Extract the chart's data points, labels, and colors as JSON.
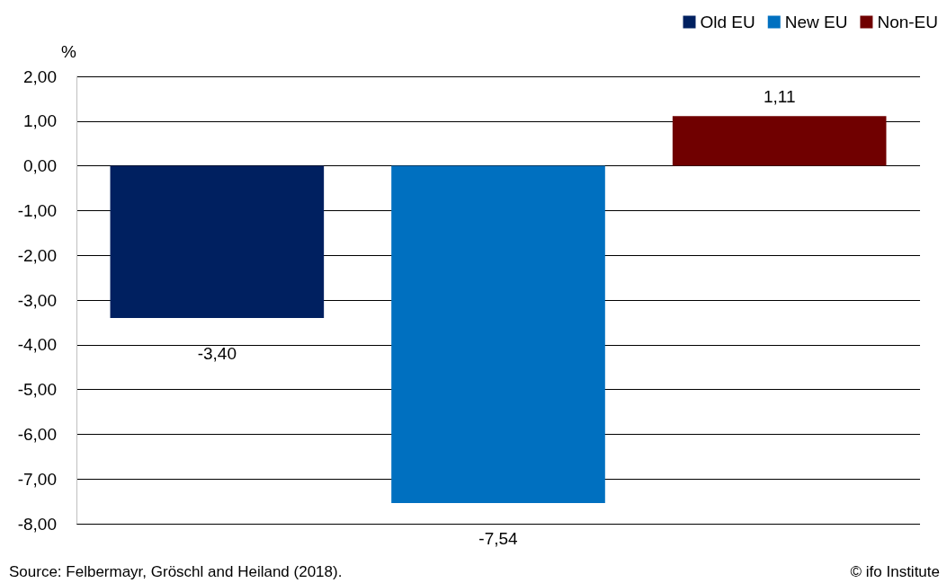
{
  "chart_data": {
    "type": "bar",
    "ylabel": "%",
    "categories": [
      null,
      null,
      null
    ],
    "series": [
      {
        "name": "Old EU",
        "color": "#002060",
        "values": [
          -3.4,
          null,
          null
        ],
        "value_labels": [
          "-3,40",
          null,
          null
        ]
      },
      {
        "name": "New EU",
        "color": "#0070c0",
        "values": [
          null,
          -7.54,
          null
        ],
        "value_labels": [
          null,
          "-7,54",
          null
        ]
      },
      {
        "name": "Non-EU",
        "color": "#700000",
        "values": [
          null,
          null,
          1.11
        ],
        "value_labels": [
          null,
          null,
          "1,11"
        ]
      }
    ],
    "ylim": [
      -8,
      2
    ],
    "yticks": [
      {
        "value": -8,
        "label": "-8,00"
      },
      {
        "value": -7,
        "label": "-7,00"
      },
      {
        "value": -6,
        "label": "-6,00"
      },
      {
        "value": -5,
        "label": "-5,00"
      },
      {
        "value": -4,
        "label": "-4,00"
      },
      {
        "value": -3,
        "label": "-3,00"
      },
      {
        "value": -2,
        "label": "-2,00"
      },
      {
        "value": -1,
        "label": "-1,00"
      },
      {
        "value": 0,
        "label": "0,00"
      },
      {
        "value": 1,
        "label": "1,00"
      },
      {
        "value": 2,
        "label": "2,00"
      }
    ],
    "grid": "y",
    "legend": "top right",
    "annotations": [
      "Source: Felbermayr, Gröschl and Heiland (2018).",
      "© ifo Institute"
    ]
  }
}
